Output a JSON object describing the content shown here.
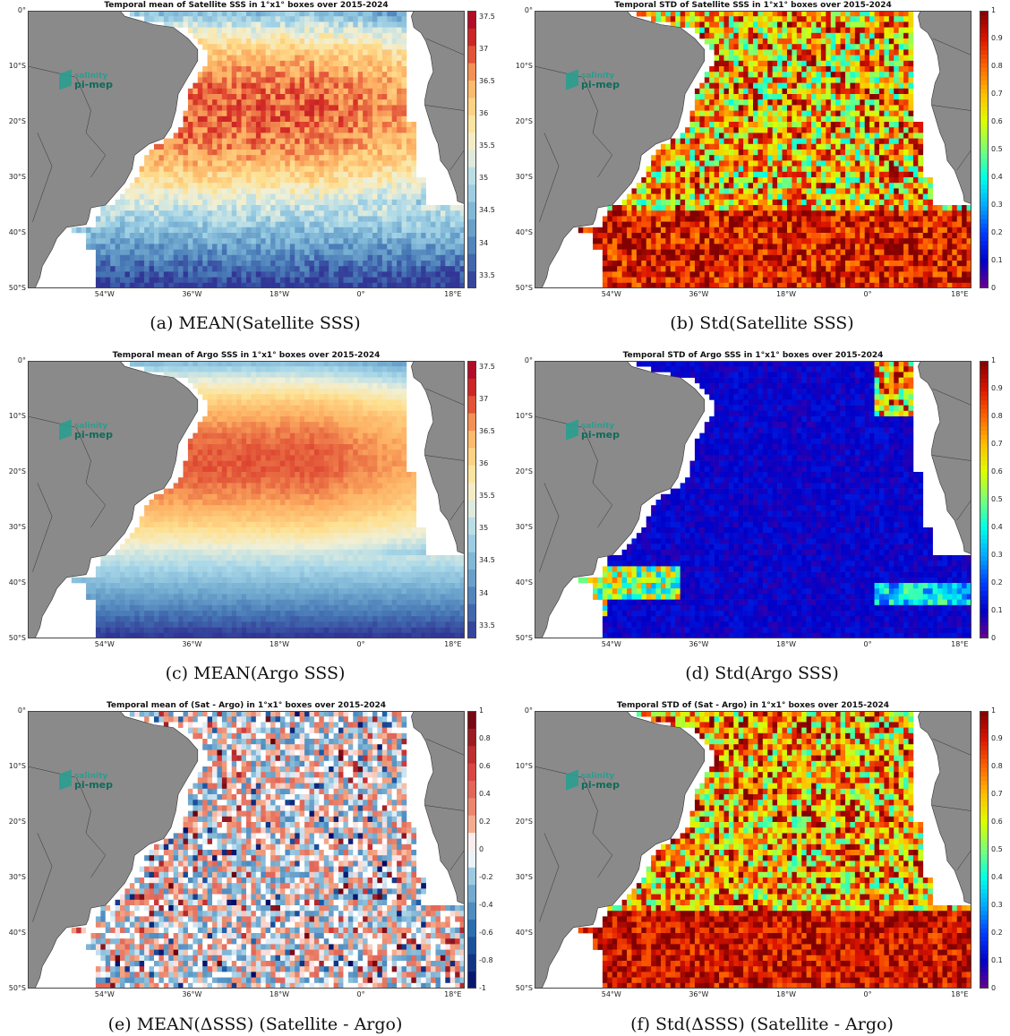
{
  "panels": [
    {
      "id": "a",
      "title": "Temporal mean of Satellite SSS in 1°x1° boxes over 2015-2024",
      "caption": "(a) MEAN(Satellite SSS)",
      "variable": "mean",
      "colormap": "RdYlBu_r",
      "cbar_ticks": [
        "37.5",
        "37",
        "36.5",
        "36",
        "35.5",
        "35",
        "34.5",
        "34",
        "33.5"
      ],
      "cbar_range": [
        33.3,
        37.6
      ]
    },
    {
      "id": "b",
      "title": "Temporal STD of Satellite SSS in 1°x1° boxes over 2015-2024",
      "caption": "(b) Std(Satellite SSS)",
      "variable": "std",
      "colormap": "jet",
      "cbar_ticks": [
        "1",
        "0.9",
        "0.8",
        "0.7",
        "0.6",
        "0.5",
        "0.4",
        "0.3",
        "0.2",
        "0.1",
        "0"
      ],
      "cbar_range": [
        0,
        1
      ]
    },
    {
      "id": "c",
      "title": "Temporal mean of Argo SSS in 1°x1° boxes over 2015-2024",
      "caption": "(c) MEAN(Argo SSS)",
      "variable": "mean",
      "colormap": "RdYlBu_r",
      "cbar_ticks": [
        "37.5",
        "37",
        "36.5",
        "36",
        "35.5",
        "35",
        "34.5",
        "34",
        "33.5"
      ],
      "cbar_range": [
        33.3,
        37.6
      ]
    },
    {
      "id": "d",
      "title": "Temporal STD of Argo SSS in 1°x1° boxes over 2015-2024",
      "caption": "(d) Std(Argo SSS)",
      "variable": "std",
      "colormap": "jet",
      "cbar_ticks": [
        "1",
        "0.9",
        "0.8",
        "0.7",
        "0.6",
        "0.5",
        "0.4",
        "0.3",
        "0.2",
        "0.1",
        "0"
      ],
      "cbar_range": [
        0,
        1
      ]
    },
    {
      "id": "e",
      "title": "Temporal mean of (Sat - Argo) in 1°x1° boxes over 2015-2024",
      "caption": "(e) MEAN(ΔSSS) (Satellite - Argo)",
      "variable": "diff",
      "colormap": "RdBu_r",
      "cbar_ticks": [
        "1",
        "0.8",
        "0.6",
        "0.4",
        "0.2",
        "0",
        "-0.2",
        "-0.4",
        "-0.6",
        "-0.8",
        "-1"
      ],
      "cbar_range": [
        -1,
        1
      ]
    },
    {
      "id": "f",
      "title": "Temporal STD of (Sat - Argo) in 1°x1° boxes over 2015-2024",
      "caption": "(f) Std(ΔSSS) (Satellite - Argo)",
      "variable": "std",
      "colormap": "jet",
      "cbar_ticks": [
        "1",
        "0.9",
        "0.8",
        "0.7",
        "0.6",
        "0.5",
        "0.4",
        "0.3",
        "0.2",
        "0.1",
        "0"
      ],
      "cbar_range": [
        0,
        1
      ]
    }
  ],
  "map": {
    "lat_ticks": [
      "0°",
      "10°S",
      "20°S",
      "30°S",
      "40°S",
      "50°S"
    ],
    "lon_ticks": [
      "54°W",
      "36°W",
      "18°W",
      "0°",
      "18°E"
    ],
    "land_color": "#8a8a8a",
    "ocean_missing_color": "#ffffff"
  },
  "logo": {
    "line1": "salinity",
    "line2": "pi-mep"
  }
}
